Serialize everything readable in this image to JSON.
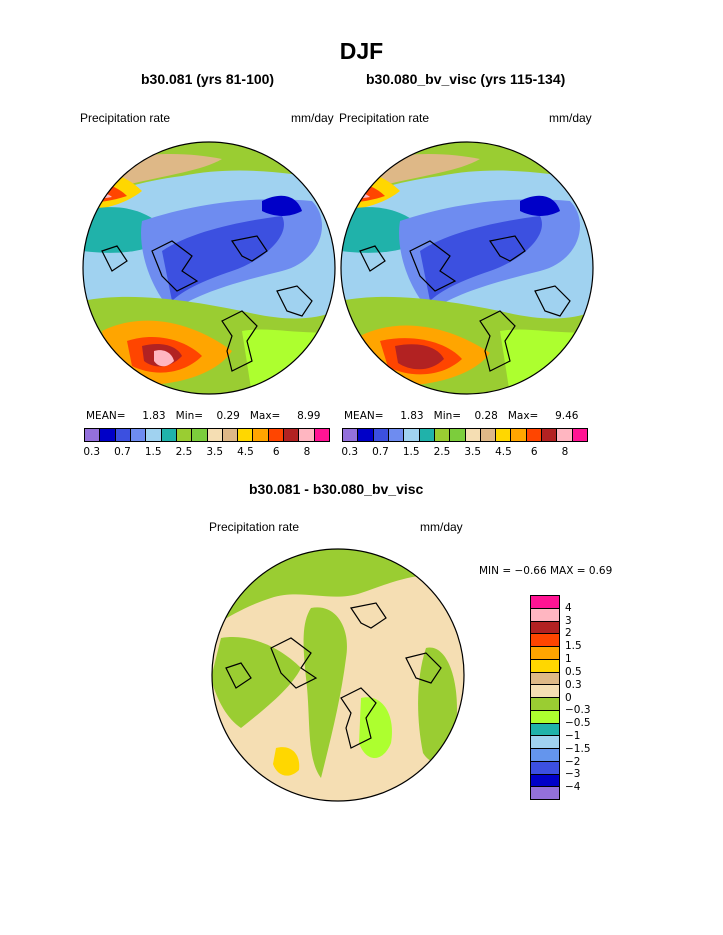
{
  "title": "DJF",
  "units": "mm/day",
  "panel_left": {
    "title": "b30.081 (yrs 81-100)",
    "variable": "Precipitation rate",
    "units": "mm/day",
    "stats": {
      "mean_label": "MEAN=",
      "mean": "1.83",
      "min_label": "Min=",
      "min": "0.29",
      "max_label": "Max=",
      "max": "8.99"
    }
  },
  "panel_right": {
    "title": "b30.080_bv_visc (yrs 115-134)",
    "variable": "Precipitation rate",
    "units": "mm/day",
    "stats": {
      "mean_label": "MEAN=",
      "mean": "1.83",
      "min_label": "Min=",
      "min": "0.28",
      "max_label": "Max=",
      "max": "9.46"
    }
  },
  "panel_diff": {
    "title": "b30.081 - b30.080_bv_visc",
    "variable": "Precipitation rate",
    "units": "mm/day",
    "stats_text": "MIN =   −0.66  MAX =     0.69"
  },
  "colors": {
    "abs_scale": [
      "#9370db",
      "#0000c8",
      "#3c50e0",
      "#6e8cf0",
      "#a0d2f0",
      "#20b2aa",
      "#9acd32",
      "#7ccd3c",
      "#f5deb3",
      "#deb887",
      "#ffd700",
      "#ffa500",
      "#ff4500",
      "#b22222",
      "#ffb6c1",
      "#ff1493"
    ],
    "diff_scale": [
      "#ff1493",
      "#ffb6c1",
      "#b22222",
      "#ff4500",
      "#ffa500",
      "#ffd700",
      "#deb887",
      "#f5deb3",
      "#9acd32",
      "#adff2f",
      "#20b2aa",
      "#a0d2f0",
      "#6495ed",
      "#3c50e0",
      "#0000c8",
      "#9370db"
    ]
  },
  "chart_data": [
    {
      "type": "heatmap",
      "title": "b30.081 (yrs 81-100)",
      "variable": "Precipitation rate",
      "units": "mm/day",
      "projection": "polar stereographic (north pole)",
      "colorbar_ticks": [
        "0.3",
        "0.7",
        "1.5",
        "2.5",
        "3.5",
        "4.5",
        "6",
        "8"
      ],
      "mean": 1.83,
      "min": 0.29,
      "max": 8.99
    },
    {
      "type": "heatmap",
      "title": "b30.080_bv_visc (yrs 115-134)",
      "variable": "Precipitation rate",
      "units": "mm/day",
      "projection": "polar stereographic (north pole)",
      "colorbar_ticks": [
        "0.3",
        "0.7",
        "1.5",
        "2.5",
        "3.5",
        "4.5",
        "6",
        "8"
      ],
      "mean": 1.83,
      "min": 0.28,
      "max": 9.46
    },
    {
      "type": "heatmap",
      "title": "b30.081 - b30.080_bv_visc",
      "variable": "Precipitation rate",
      "units": "mm/day",
      "projection": "polar stereographic (north pole)",
      "colorbar_levels": [
        "4",
        "3",
        "2",
        "1.5",
        "1",
        "0.5",
        "0.3",
        "0",
        "−0.3",
        "−0.5",
        "−1",
        "−1.5",
        "−2",
        "−3",
        "−4"
      ],
      "min": -0.66,
      "max": 0.69
    }
  ]
}
